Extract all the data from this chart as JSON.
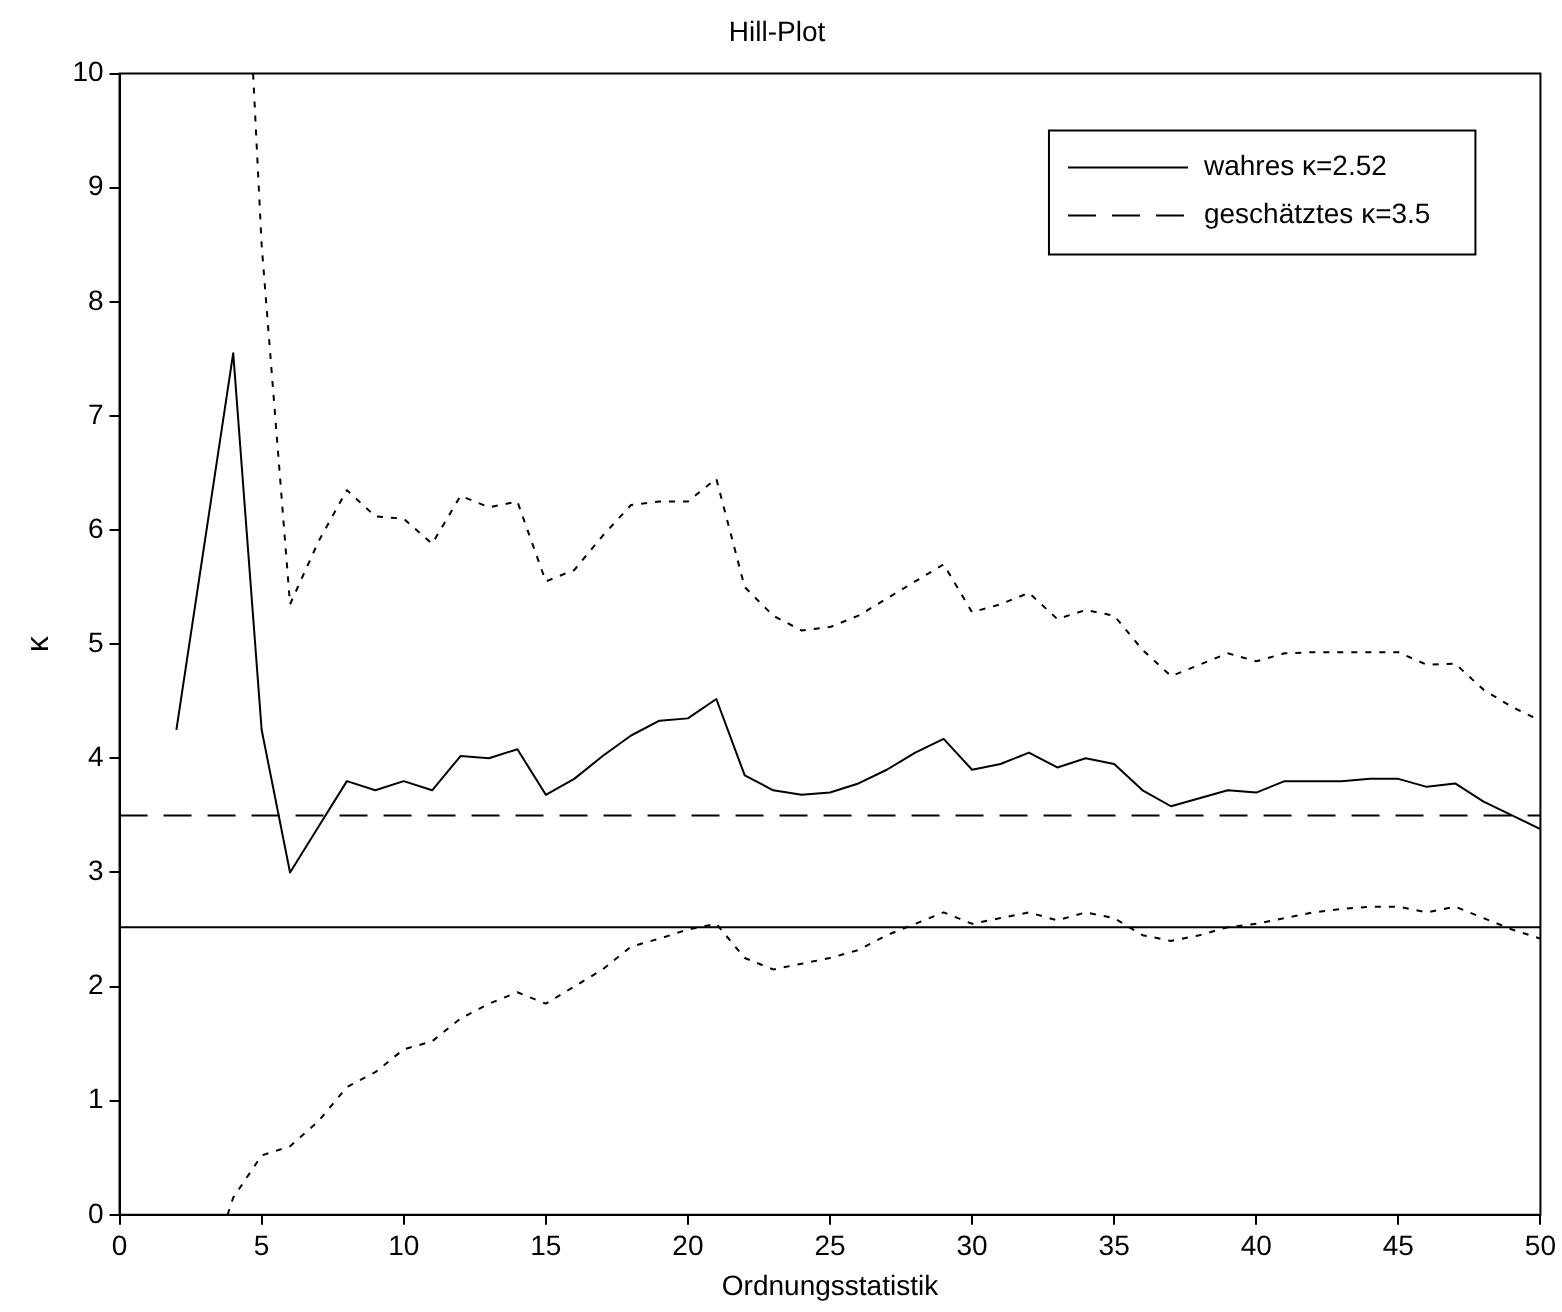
{
  "chart_data": {
    "type": "line",
    "title": "Hill-Plot",
    "xlabel": "Ordnungsstatistik",
    "ylabel": "κ",
    "xlim": [
      0,
      50
    ],
    "xticks": [
      0,
      5,
      10,
      15,
      20,
      25,
      30,
      35,
      40,
      45,
      50
    ],
    "ylim": [
      0,
      10
    ],
    "yticks": [
      0,
      1,
      2,
      3,
      4,
      5,
      6,
      7,
      8,
      9,
      10
    ],
    "grid": false,
    "legend": "top right",
    "marker": "none",
    "series": [
      {
        "color": "#000000",
        "line_style": "solid",
        "x": [
          2,
          3,
          4,
          5,
          6,
          7,
          8,
          9,
          10,
          11,
          12,
          13,
          14,
          15,
          16,
          17,
          18,
          19,
          20,
          21,
          22,
          23,
          24,
          25,
          26,
          27,
          28,
          29,
          30,
          31,
          32,
          33,
          34,
          35,
          36,
          37,
          38,
          39,
          40,
          41,
          42,
          43,
          44,
          45,
          46,
          47,
          48,
          49,
          50
        ],
        "values": [
          4.25,
          5.9,
          7.55,
          4.25,
          3.0,
          3.4,
          3.8,
          3.72,
          3.8,
          3.72,
          4.02,
          4.0,
          4.08,
          3.68,
          3.82,
          4.02,
          4.2,
          4.33,
          4.35,
          4.52,
          3.85,
          3.72,
          3.68,
          3.7,
          3.78,
          3.9,
          4.05,
          4.17,
          3.9,
          3.95,
          4.05,
          3.92,
          4.0,
          3.95,
          3.72,
          3.58,
          3.65,
          3.72,
          3.7,
          3.8,
          3.8,
          3.8,
          3.82,
          3.82,
          3.75,
          3.78,
          3.62,
          3.5,
          3.38
        ]
      },
      {
        "color": "#000000",
        "line_style": "dotted",
        "x": [
          4.7,
          5,
          6,
          7,
          8,
          9,
          10,
          11,
          12,
          13,
          14,
          15,
          16,
          17,
          18,
          19,
          20,
          21,
          22,
          23,
          24,
          25,
          26,
          27,
          28,
          29,
          30,
          31,
          32,
          33,
          34,
          35,
          36,
          37,
          38,
          39,
          40,
          41,
          42,
          43,
          44,
          45,
          46,
          47,
          48,
          49,
          50
        ],
        "values": [
          10,
          8.5,
          5.35,
          5.9,
          6.35,
          6.12,
          6.1,
          5.88,
          6.3,
          6.2,
          6.25,
          5.55,
          5.65,
          5.95,
          6.22,
          6.25,
          6.25,
          6.45,
          5.5,
          5.25,
          5.12,
          5.15,
          5.25,
          5.4,
          5.55,
          5.7,
          5.28,
          5.35,
          5.45,
          5.22,
          5.3,
          5.25,
          4.95,
          4.72,
          4.82,
          4.92,
          4.85,
          4.92,
          4.93,
          4.93,
          4.93,
          4.93,
          4.82,
          4.83,
          4.6,
          4.45,
          4.33
        ]
      },
      {
        "color": "#000000",
        "line_style": "dotted",
        "x": [
          3.8,
          4,
          5,
          6,
          7,
          8,
          9,
          10,
          11,
          12,
          13,
          14,
          15,
          16,
          17,
          18,
          19,
          20,
          21,
          22,
          23,
          24,
          25,
          26,
          27,
          28,
          29,
          30,
          31,
          32,
          33,
          34,
          35,
          36,
          37,
          38,
          39,
          40,
          41,
          42,
          43,
          44,
          45,
          46,
          47,
          48,
          49,
          50
        ],
        "values": [
          0,
          0.15,
          0.52,
          0.6,
          0.82,
          1.12,
          1.25,
          1.45,
          1.52,
          1.72,
          1.85,
          1.95,
          1.85,
          2.0,
          2.15,
          2.35,
          2.42,
          2.5,
          2.55,
          2.25,
          2.15,
          2.2,
          2.25,
          2.32,
          2.45,
          2.55,
          2.65,
          2.55,
          2.6,
          2.65,
          2.58,
          2.65,
          2.6,
          2.45,
          2.4,
          2.45,
          2.52,
          2.55,
          2.6,
          2.65,
          2.68,
          2.7,
          2.7,
          2.65,
          2.7,
          2.6,
          2.5,
          2.42
        ]
      },
      {
        "name": "wahres κ=2.52",
        "color": "#000000",
        "line_style": "solid",
        "x": [
          0,
          50
        ],
        "values": [
          2.52,
          2.52
        ]
      },
      {
        "name": "geschätztes κ=3.5",
        "color": "#000000",
        "line_style": "dashed",
        "x": [
          0,
          50
        ],
        "values": [
          3.5,
          3.5
        ]
      }
    ]
  }
}
